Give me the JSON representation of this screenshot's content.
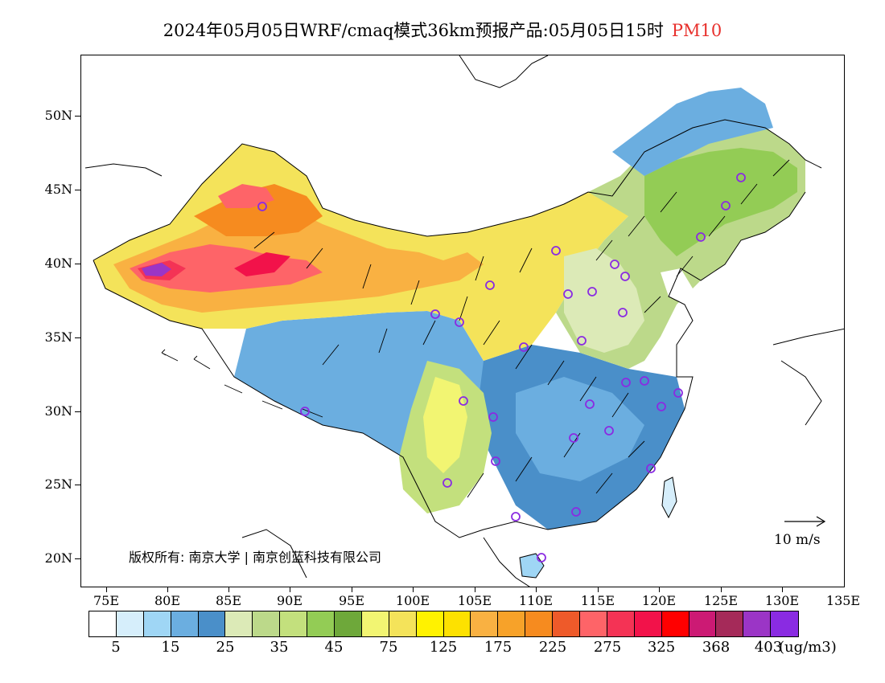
{
  "header": {
    "title": "2024年05月05日WRF/cmaq模式36km预报产品:05月05日15时",
    "pollutant": "PM10",
    "pollutant_color": "#e8302c"
  },
  "map": {
    "lat_labels": [
      "50N",
      "45N",
      "40N",
      "35N",
      "30N",
      "25N",
      "20N"
    ],
    "lon_labels": [
      "75E",
      "80E",
      "85E",
      "90E",
      "95E",
      "100E",
      "105E",
      "110E",
      "115E",
      "120E",
      "125E",
      "130E",
      "135E"
    ],
    "copyright": "版权所有: 南京大学 | 南京创蓝科技有限公司",
    "wind_reference": "10 m/s",
    "station_marker_color": "#8a2be2"
  },
  "legend": {
    "colors": [
      "#ffffff",
      "#d6eefb",
      "#9fd6f5",
      "#6baee0",
      "#4a8fc9",
      "#dceab7",
      "#bcd98a",
      "#c3e07d",
      "#93cc55",
      "#6ea83a",
      "#f2f572",
      "#f4e35a",
      "#fff200",
      "#fde100",
      "#f9b142",
      "#f7a229",
      "#f68b1f",
      "#ee5a2a",
      "#fe6468",
      "#f43355",
      "#f2124a",
      "#ff0000",
      "#cc1a74",
      "#a52a59",
      "#9b35c6",
      "#8a2be2"
    ],
    "labels": [
      "5",
      "15",
      "25",
      "35",
      "45",
      "75",
      "125",
      "175",
      "225",
      "275",
      "325",
      "368",
      "403"
    ],
    "unit": "(ug/m3)"
  }
}
